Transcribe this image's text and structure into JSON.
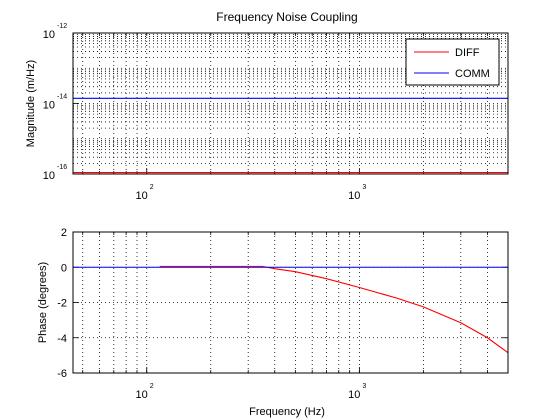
{
  "figure": {
    "title": "Frequency Noise Coupling",
    "xlabel": "Frequency (Hz)"
  },
  "chart_data": [
    {
      "type": "line",
      "title": "Frequency Noise Coupling",
      "xlabel": "",
      "ylabel": "Magnitude (m/Hz)",
      "xscale": "log",
      "yscale": "log",
      "xlim": [
        45,
        5000
      ],
      "ylim": [
        1e-16,
        1e-12
      ],
      "grid": true,
      "legend_position": "top-right",
      "xticks": [
        {
          "value": 100,
          "base": "10",
          "exp": "2"
        },
        {
          "value": 1000,
          "base": "10",
          "exp": "3"
        }
      ],
      "yticks": [
        {
          "value": 1e-16,
          "base": "10",
          "exp": "-16"
        },
        {
          "value": 1e-14,
          "base": "10",
          "exp": "-14"
        },
        {
          "value": 1e-12,
          "base": "10",
          "exp": "-12"
        }
      ],
      "series": [
        {
          "name": "DIFF",
          "color": "#ff0000",
          "x": [
            45,
            5000
          ],
          "y": [
            1.1e-16,
            1.1e-16
          ]
        },
        {
          "name": "COMM",
          "color": "#0000ff",
          "x": [
            45,
            5000
          ],
          "y": [
            1.4e-14,
            1.4e-14
          ]
        }
      ]
    },
    {
      "type": "line",
      "xlabel": "Frequency (Hz)",
      "ylabel": "Phase (degrees)",
      "xscale": "log",
      "xlim": [
        45,
        5000
      ],
      "ylim": [
        -6,
        2
      ],
      "grid": true,
      "xticks": [
        {
          "value": 100,
          "base": "10",
          "exp": "2"
        },
        {
          "value": 1000,
          "base": "10",
          "exp": "3"
        }
      ],
      "yticks": [
        2,
        0,
        -2,
        -4,
        -6
      ],
      "series": [
        {
          "name": "DIFF",
          "color": "#ff0000",
          "x": [
            115,
            200,
            350,
            400,
            500,
            700,
            1000,
            1500,
            2000,
            3000,
            4000,
            5000
          ],
          "y": [
            0.05,
            0.05,
            0.05,
            -0.08,
            -0.25,
            -0.65,
            -1.15,
            -1.75,
            -2.25,
            -3.15,
            -4.0,
            -4.85
          ]
        },
        {
          "name": "COMM",
          "color": "#0000ff",
          "x": [
            45,
            5000
          ],
          "y": [
            0,
            0
          ]
        }
      ]
    }
  ]
}
